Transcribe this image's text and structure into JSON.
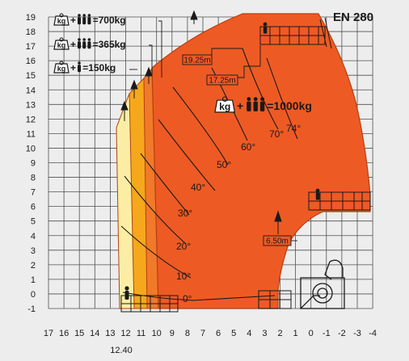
{
  "model": "EN 280",
  "colors": {
    "background": "#ededed",
    "grid": "#505050",
    "zone_light": "#fbeea4",
    "zone_orange": "#f5a81c",
    "zone_deep": "#f07a2a",
    "zone_main": "#ee5a24",
    "zone_stroke": "#b53f10",
    "ink": "#1a1a1a"
  },
  "axes": {
    "x_ticks": [
      "17",
      "16",
      "15",
      "14",
      "13",
      "12",
      "11",
      "10",
      "9",
      "8",
      "7",
      "6",
      "5",
      "4",
      "3",
      "2",
      "1",
      "0",
      "-1",
      "-2",
      "-3",
      "-4"
    ],
    "y_ticks": [
      "19",
      "18",
      "17",
      "16",
      "15",
      "14",
      "13",
      "12",
      "11",
      "10",
      "9",
      "8",
      "7",
      "6",
      "5",
      "4",
      "3",
      "2",
      "1",
      "0",
      "-1"
    ],
    "reach_label": "12.40"
  },
  "legend": [
    {
      "people": 3,
      "plus": "+",
      "load": "=700kg",
      "kg": "kg"
    },
    {
      "people": 3,
      "plus": "+",
      "load": "=365kg",
      "kg": "kg"
    },
    {
      "people": 1,
      "plus": "+",
      "load": "=150kg",
      "kg": "kg"
    }
  ],
  "main_load": {
    "people": 3,
    "plus": "+",
    "load": "=1000kg",
    "kg": "kg"
  },
  "angles": [
    "74°",
    "70°",
    "60°",
    "50°",
    "40°",
    "30°",
    "20°",
    "10°",
    "0°"
  ],
  "dimensions": [
    "19.25m",
    "17.25m",
    "6.50m"
  ]
}
